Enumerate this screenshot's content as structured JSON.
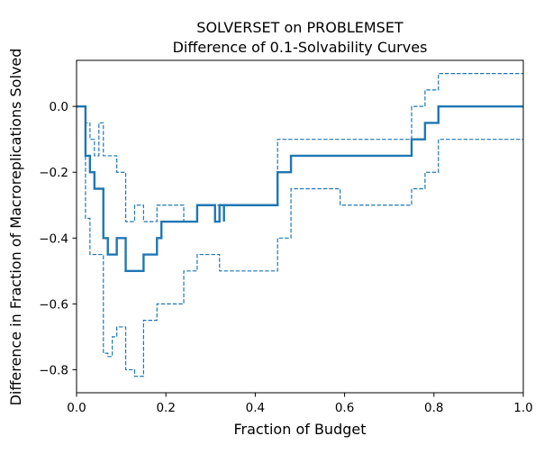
{
  "colors": {
    "series": "#1f77b4",
    "axes": "#000000",
    "background": "#ffffff"
  },
  "chart_data": {
    "type": "line",
    "title_line1": "SOLVERSET on PROBLEMSET",
    "title_line2": "Difference of 0.1-Solvability Curves",
    "xlabel": "Fraction of Budget",
    "ylabel": "Difference in Fraction of Macroreplications Solved",
    "xlim": [
      0.0,
      1.0
    ],
    "ylim": [
      -0.87,
      0.14
    ],
    "xticks": [
      0.0,
      0.2,
      0.4,
      0.6,
      0.8,
      1.0
    ],
    "xtick_labels": [
      "0.0",
      "0.2",
      "0.4",
      "0.6",
      "0.8",
      "1.0"
    ],
    "yticks": [
      0.0,
      -0.2,
      -0.4,
      -0.6,
      -0.8
    ],
    "ytick_labels": [
      "0.0",
      "−0.2",
      "−0.4",
      "−0.6",
      "−0.8"
    ],
    "grid": false,
    "legend": "none",
    "series": [
      {
        "style": "solid",
        "points": [
          [
            0.0,
            0.0
          ],
          [
            0.02,
            0.0
          ],
          [
            0.02,
            -0.15
          ],
          [
            0.03,
            -0.15
          ],
          [
            0.03,
            -0.2
          ],
          [
            0.04,
            -0.2
          ],
          [
            0.04,
            -0.25
          ],
          [
            0.06,
            -0.25
          ],
          [
            0.06,
            -0.4
          ],
          [
            0.07,
            -0.4
          ],
          [
            0.07,
            -0.45
          ],
          [
            0.09,
            -0.45
          ],
          [
            0.09,
            -0.4
          ],
          [
            0.11,
            -0.4
          ],
          [
            0.11,
            -0.5
          ],
          [
            0.15,
            -0.5
          ],
          [
            0.15,
            -0.45
          ],
          [
            0.18,
            -0.45
          ],
          [
            0.18,
            -0.4
          ],
          [
            0.19,
            -0.4
          ],
          [
            0.19,
            -0.35
          ],
          [
            0.27,
            -0.35
          ],
          [
            0.27,
            -0.3
          ],
          [
            0.31,
            -0.3
          ],
          [
            0.31,
            -0.35
          ],
          [
            0.32,
            -0.35
          ],
          [
            0.32,
            -0.3
          ],
          [
            0.33,
            -0.3
          ],
          [
            0.33,
            -0.35
          ],
          [
            0.33,
            -0.3
          ],
          [
            0.45,
            -0.3
          ],
          [
            0.45,
            -0.2
          ],
          [
            0.48,
            -0.2
          ],
          [
            0.48,
            -0.15
          ],
          [
            0.75,
            -0.15
          ],
          [
            0.75,
            -0.1
          ],
          [
            0.78,
            -0.1
          ],
          [
            0.78,
            -0.05
          ],
          [
            0.81,
            -0.05
          ],
          [
            0.81,
            0.0
          ],
          [
            1.0,
            0.0
          ]
        ]
      },
      {
        "style": "dashed",
        "points": [
          [
            0.0,
            0.0
          ],
          [
            0.02,
            0.0
          ],
          [
            0.02,
            -0.05
          ],
          [
            0.03,
            -0.05
          ],
          [
            0.03,
            -0.1
          ],
          [
            0.04,
            -0.1
          ],
          [
            0.04,
            -0.15
          ],
          [
            0.05,
            -0.15
          ],
          [
            0.05,
            -0.05
          ],
          [
            0.06,
            -0.05
          ],
          [
            0.06,
            -0.15
          ],
          [
            0.09,
            -0.15
          ],
          [
            0.09,
            -0.2
          ],
          [
            0.11,
            -0.2
          ],
          [
            0.11,
            -0.35
          ],
          [
            0.13,
            -0.35
          ],
          [
            0.13,
            -0.3
          ],
          [
            0.15,
            -0.3
          ],
          [
            0.15,
            -0.35
          ],
          [
            0.18,
            -0.35
          ],
          [
            0.18,
            -0.3
          ],
          [
            0.24,
            -0.3
          ],
          [
            0.24,
            -0.35
          ],
          [
            0.27,
            -0.35
          ],
          [
            0.27,
            -0.3
          ],
          [
            0.33,
            -0.3
          ],
          [
            0.33,
            -0.35
          ],
          [
            0.33,
            -0.3
          ],
          [
            0.45,
            -0.3
          ],
          [
            0.45,
            -0.1
          ],
          [
            0.75,
            -0.1
          ],
          [
            0.75,
            0.0
          ],
          [
            0.78,
            0.0
          ],
          [
            0.78,
            0.05
          ],
          [
            0.81,
            0.05
          ],
          [
            0.81,
            0.1
          ],
          [
            1.0,
            0.1
          ]
        ]
      },
      {
        "style": "dashed",
        "points": [
          [
            0.0,
            0.0
          ],
          [
            0.02,
            0.0
          ],
          [
            0.02,
            -0.34
          ],
          [
            0.03,
            -0.34
          ],
          [
            0.03,
            -0.45
          ],
          [
            0.06,
            -0.45
          ],
          [
            0.06,
            -0.75
          ],
          [
            0.07,
            -0.75
          ],
          [
            0.07,
            -0.76
          ],
          [
            0.08,
            -0.76
          ],
          [
            0.08,
            -0.7
          ],
          [
            0.09,
            -0.7
          ],
          [
            0.09,
            -0.67
          ],
          [
            0.11,
            -0.67
          ],
          [
            0.11,
            -0.8
          ],
          [
            0.13,
            -0.8
          ],
          [
            0.13,
            -0.82
          ],
          [
            0.15,
            -0.82
          ],
          [
            0.15,
            -0.65
          ],
          [
            0.18,
            -0.65
          ],
          [
            0.18,
            -0.6
          ],
          [
            0.24,
            -0.6
          ],
          [
            0.24,
            -0.5
          ],
          [
            0.27,
            -0.5
          ],
          [
            0.27,
            -0.45
          ],
          [
            0.32,
            -0.45
          ],
          [
            0.32,
            -0.5
          ],
          [
            0.45,
            -0.5
          ],
          [
            0.45,
            -0.4
          ],
          [
            0.48,
            -0.4
          ],
          [
            0.48,
            -0.25
          ],
          [
            0.59,
            -0.25
          ],
          [
            0.59,
            -0.3
          ],
          [
            0.75,
            -0.3
          ],
          [
            0.75,
            -0.25
          ],
          [
            0.78,
            -0.25
          ],
          [
            0.78,
            -0.2
          ],
          [
            0.81,
            -0.2
          ],
          [
            0.81,
            -0.1
          ],
          [
            1.0,
            -0.1
          ]
        ]
      }
    ]
  }
}
